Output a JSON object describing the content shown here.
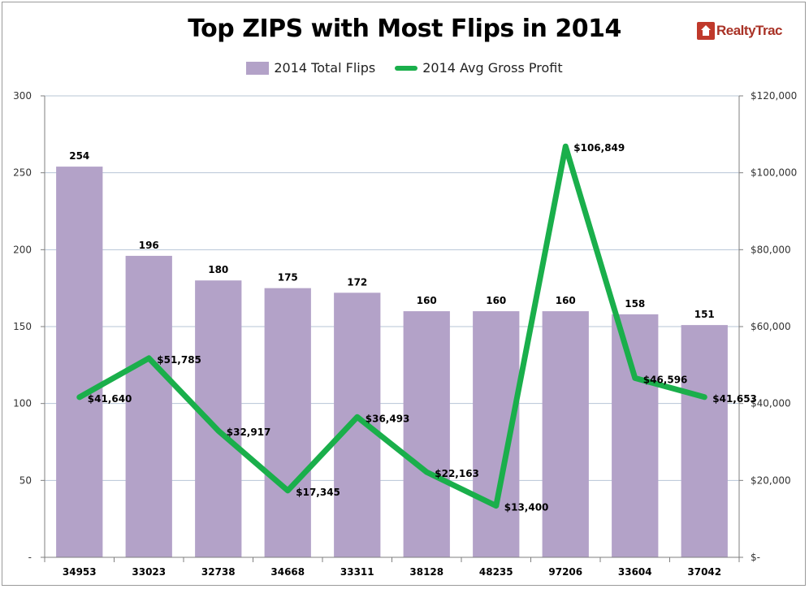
{
  "branding": {
    "logo_text": "RealtyTrac"
  },
  "chart_data": {
    "type": "bar",
    "title": "Top ZIPS with Most Flips in 2014",
    "categories": [
      "34953",
      "33023",
      "32738",
      "34668",
      "33311",
      "38128",
      "48235",
      "97206",
      "33604",
      "37042"
    ],
    "series": [
      {
        "name": "2014 Total Flips",
        "type": "bar",
        "axis": "left",
        "color": "#b3a2c8",
        "values": [
          254,
          196,
          180,
          175,
          172,
          160,
          160,
          160,
          158,
          151
        ],
        "labels": [
          "254",
          "196",
          "180",
          "175",
          "172",
          "160",
          "160",
          "160",
          "158",
          "151"
        ]
      },
      {
        "name": "2014 Avg Gross Profit",
        "type": "line",
        "axis": "right",
        "color": "#1aaf4b",
        "values": [
          41640,
          51785,
          32917,
          17345,
          36493,
          22163,
          13400,
          106849,
          46596,
          41653
        ],
        "labels": [
          "$41,640",
          "$51,785",
          "$32,917",
          "$17,345",
          "$36,493",
          "$22,163",
          "$13,400",
          "$106,849",
          "$46,596",
          "$41,653"
        ]
      }
    ],
    "y_left": {
      "range": [
        0,
        300
      ],
      "ticks": [
        0,
        50,
        100,
        150,
        200,
        250,
        300
      ],
      "tick_labels": [
        "-",
        "50",
        "100",
        "150",
        "200",
        "250",
        "300"
      ]
    },
    "y_right": {
      "range": [
        0,
        120000
      ],
      "ticks": [
        0,
        20000,
        40000,
        60000,
        80000,
        100000,
        120000
      ],
      "tick_labels": [
        "$-",
        "$20,000",
        "$40,000",
        "$60,000",
        "$80,000",
        "$100,000",
        "$120,000"
      ]
    },
    "grid": true,
    "legend_position": "top"
  }
}
